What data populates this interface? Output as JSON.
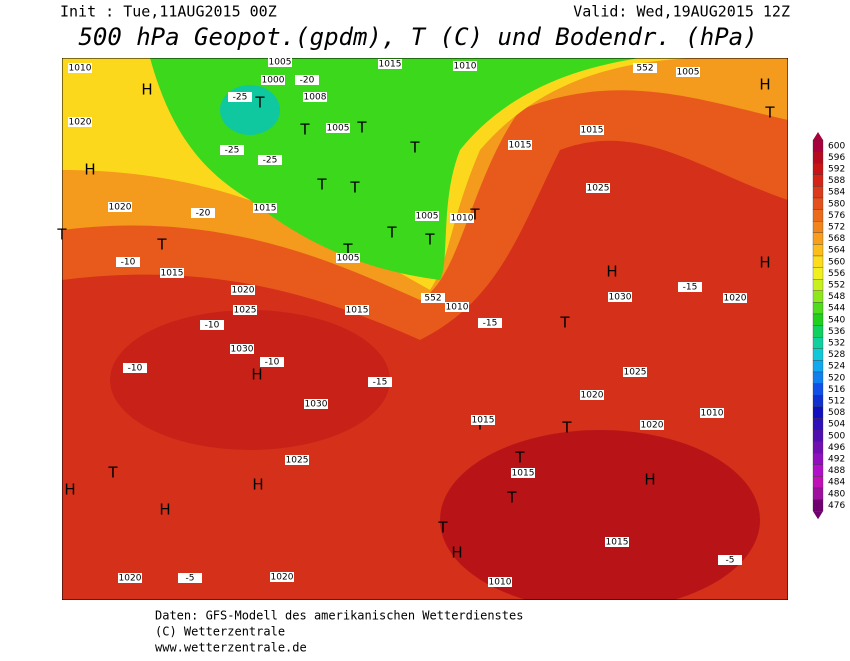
{
  "header": {
    "init": "Init : Tue,11AUG2015 00Z",
    "valid": "Valid: Wed,19AUG2015 12Z",
    "title": "500 hPa Geopot.(gpdm), T (C) und Bodendr. (hPa)"
  },
  "colorbar": {
    "levels": [
      600,
      596,
      592,
      588,
      584,
      580,
      576,
      572,
      568,
      564,
      560,
      556,
      552,
      548,
      544,
      540,
      536,
      532,
      528,
      524,
      520,
      516,
      512,
      508,
      504,
      500,
      496,
      492,
      488,
      484,
      480,
      476
    ],
    "colors": [
      "#a8003c",
      "#b80a1e",
      "#c81414",
      "#d42418",
      "#dc3a1c",
      "#e4501c",
      "#ec6a1c",
      "#f2841c",
      "#f89e1c",
      "#fcbc1c",
      "#fcdc1c",
      "#f0f020",
      "#c8f020",
      "#8ce81c",
      "#50dc1c",
      "#20d01c",
      "#10d060",
      "#10d0a0",
      "#10c8d8",
      "#10a8f0",
      "#1080f0",
      "#1050e8",
      "#1030d0",
      "#1010c0",
      "#3010b8",
      "#5010b0",
      "#7010b0",
      "#9010c0",
      "#b010c8",
      "#c010b8",
      "#a010a0",
      "#700070"
    ]
  },
  "map_labels": [
    "H",
    "H",
    "H",
    "H",
    "H",
    "H",
    "H",
    "H",
    "H",
    "H",
    "H",
    "T",
    "T",
    "T",
    "T",
    "T",
    "T",
    "T",
    "T",
    "T",
    "T",
    "T",
    "T",
    "T",
    "T",
    "T",
    "T",
    "T",
    "T",
    "T",
    "T",
    "1010",
    "1010",
    "1010",
    "1010",
    "1010",
    "1010",
    "1005",
    "1005",
    "1005",
    "1005",
    "1005",
    "1000",
    "1015",
    "1015",
    "1015",
    "1015",
    "1015",
    "1015",
    "1015",
    "1015",
    "1015",
    "1020",
    "1020",
    "1020",
    "1020",
    "1020",
    "1020",
    "1020",
    "1020",
    "1025",
    "1025",
    "1025",
    "1025",
    "1030",
    "1030",
    "1030",
    "1008",
    "552",
    "552",
    "-20",
    "-20",
    "-25",
    "-25",
    "-25",
    "-10",
    "-10",
    "-10",
    "-10",
    "-15",
    "-15",
    "-15",
    "-5",
    "-5"
  ],
  "footer": [
    "Daten: GFS-Modell des amerikanischen Wetterdienstes",
    "(C) Wetterzentrale",
    "www.wetterzentrale.de"
  ]
}
